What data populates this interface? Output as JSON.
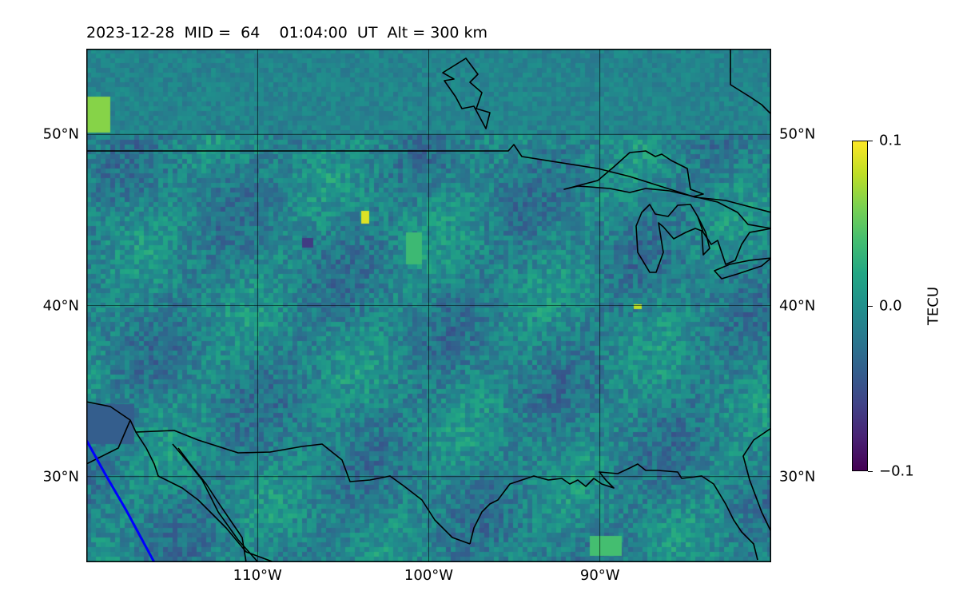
{
  "title": "2023-12-28  MID =  64    01:04:00  UT  Alt = 300 km",
  "map": {
    "projection": "equirectangular",
    "lon_range": [
      -120,
      -80
    ],
    "lat_range": [
      25,
      55
    ],
    "gridlines": true,
    "lat_ticks": [
      {
        "value": 50,
        "label": "50°N"
      },
      {
        "value": 40,
        "label": "40°N"
      },
      {
        "value": 30,
        "label": "30°N"
      }
    ],
    "lon_ticks": [
      {
        "value": -110,
        "label": "110°W"
      },
      {
        "value": -100,
        "label": "100°W"
      },
      {
        "value": -90,
        "label": "90°W"
      }
    ],
    "boundary_color": "#000000",
    "terminator_color": "#0000ff"
  },
  "colorbar": {
    "colormap": "viridis",
    "min": -0.1,
    "max": 0.1,
    "ticks": [
      {
        "value": 0.1,
        "label": "0.1"
      },
      {
        "value": 0.0,
        "label": "0.0"
      },
      {
        "value": -0.1,
        "label": "−0.1"
      }
    ],
    "label": "TECU"
  }
}
